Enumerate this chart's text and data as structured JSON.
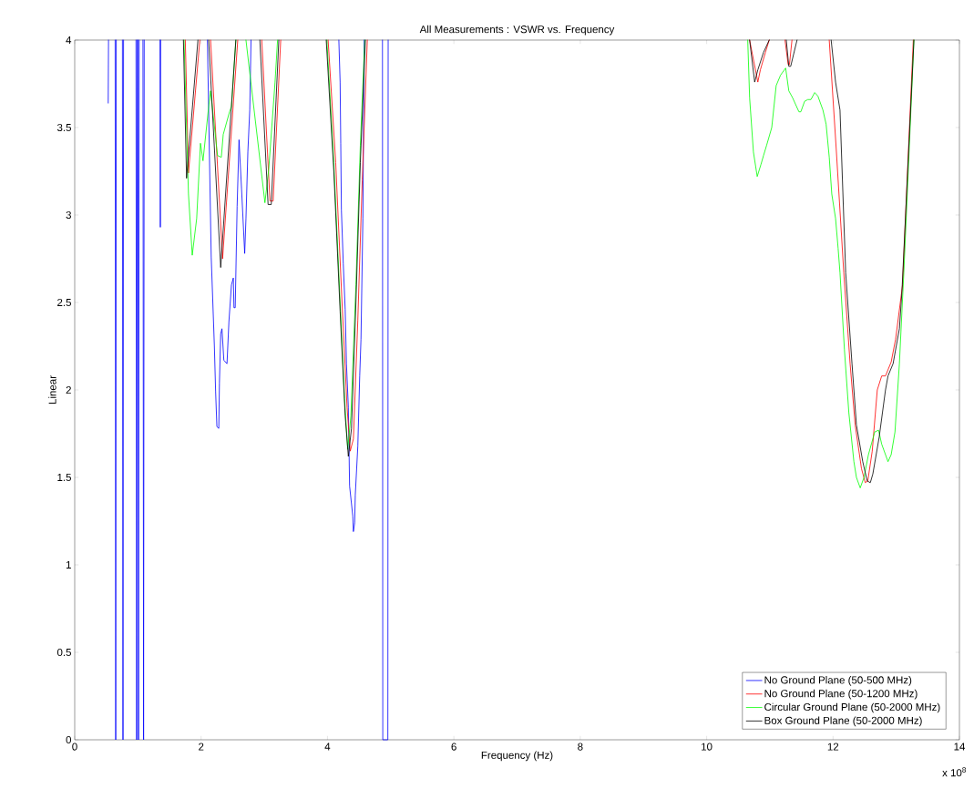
{
  "chart_data": {
    "type": "line",
    "title": "All Measurements : VSWR vs. Frequency",
    "xlabel": "Frequency (Hz)",
    "ylabel": "Linear",
    "annotations": [
      "x 10$^{8}$"
    ],
    "xlim": [
      0,
      14
    ],
    "ylim": [
      0,
      4
    ],
    "xticks": [
      0,
      2,
      4,
      6,
      8,
      10,
      12,
      14
    ],
    "yticks": [
      0,
      0.5,
      1,
      1.5,
      2,
      2.5,
      3,
      3.5,
      4
    ],
    "grid": false,
    "legend": "bottom right",
    "marker": "none",
    "series": [
      {
        "name": "No Ground Plane (50-500 MHz)",
        "color": "#0000ff",
        "x": [
          0.53,
          0.535,
          0.6,
          0.64,
          0.649,
          0.658,
          0.7,
          0.755,
          0.764,
          0.773,
          0.9,
          0.97,
          0.98,
          0.99,
          0.995,
          1.0,
          1.01,
          1.02,
          1.05,
          1.08,
          1.09,
          1.1,
          1.2,
          1.35,
          1.355,
          1.36,
          1.8,
          2.1,
          2.16,
          2.21,
          2.23,
          2.25,
          2.28,
          2.29,
          2.31,
          2.33,
          2.36,
          2.41,
          2.44,
          2.48,
          2.51,
          2.52,
          2.54,
          2.57,
          2.6,
          2.64,
          2.69,
          2.71,
          2.74,
          2.77,
          2.79,
          3.5,
          4.18,
          4.2,
          4.21,
          4.22,
          4.25,
          4.28,
          4.3,
          4.33,
          4.35,
          4.4,
          4.41,
          4.43,
          4.44,
          4.48,
          4.51,
          4.53,
          4.56,
          4.58,
          4.7,
          4.87,
          4.875,
          4.955,
          4.96
        ],
        "values": [
          3.64,
          4,
          null,
          4,
          0,
          4,
          null,
          4,
          0,
          4,
          null,
          4,
          0,
          4,
          null,
          4,
          0,
          4,
          null,
          4,
          0,
          4,
          null,
          4,
          2.93,
          4,
          null,
          4,
          2.76,
          2.25,
          1.99,
          1.79,
          1.78,
          2.04,
          2.32,
          2.35,
          2.17,
          2.15,
          2.39,
          2.6,
          2.64,
          2.47,
          2.47,
          3.05,
          3.43,
          3.15,
          2.78,
          2.98,
          3.36,
          3.6,
          4,
          null,
          4,
          3.76,
          3.41,
          3.03,
          2.72,
          2.46,
          2.15,
          1.9,
          1.45,
          1.28,
          1.19,
          1.24,
          1.4,
          1.68,
          2.08,
          2.29,
          2.98,
          4,
          null,
          4,
          0,
          0,
          4
        ]
      },
      {
        "name": "No Ground Plane (50-1200 MHz)",
        "color": "#ff0000",
        "x": [
          1.75,
          1.8,
          1.98,
          2.0,
          2.15,
          2.34,
          2.58,
          2.7,
          2.96,
          3.09,
          3.14,
          3.26,
          3.6,
          4.01,
          4.13,
          4.23,
          4.31,
          4.36,
          4.41,
          4.48,
          4.55,
          4.63,
          7.0,
          10.68,
          10.81,
          10.85,
          10.93,
          10.99,
          11.1,
          11.24,
          11.29,
          11.31,
          11.35,
          11.6,
          11.94,
          12.05,
          12.17,
          12.27,
          12.35,
          12.45,
          12.51,
          12.55,
          12.62,
          12.7,
          12.77,
          12.83,
          12.92,
          12.99,
          13.1,
          13.27
        ],
        "values": [
          4,
          3.24,
          4,
          null,
          4,
          2.75,
          4,
          null,
          4,
          3.08,
          3.08,
          4,
          null,
          4,
          3.3,
          2.5,
          1.9,
          1.65,
          1.72,
          2.4,
          3.2,
          4,
          null,
          4,
          3.76,
          3.83,
          3.93,
          4,
          null,
          4,
          3.86,
          3.86,
          4,
          null,
          4,
          3.38,
          2.67,
          2.15,
          1.8,
          1.55,
          1.47,
          1.48,
          1.65,
          2.0,
          2.08,
          2.08,
          2.16,
          2.29,
          2.6,
          4
        ]
      },
      {
        "name": "Circular Ground Plane (50-2000 MHz)",
        "color": "#00ff00",
        "x": [
          1.73,
          1.8,
          1.86,
          1.93,
          1.99,
          2.03,
          2.12,
          2.15,
          2.26,
          2.32,
          2.35,
          2.45,
          2.48,
          2.55,
          2.63,
          2.71,
          3.01,
          3.07,
          3.17,
          3.21,
          3.6,
          3.99,
          4.1,
          4.2,
          4.27,
          4.32,
          4.37,
          4.45,
          4.52,
          4.59,
          7.0,
          10.65,
          10.68,
          10.74,
          10.8,
          10.86,
          10.9,
          10.95,
          11.03,
          11.1,
          11.17,
          11.25,
          11.3,
          11.36,
          11.46,
          11.49,
          11.55,
          11.6,
          11.65,
          11.71,
          11.76,
          11.84,
          11.89,
          11.94,
          11.98,
          12.04,
          12.08,
          12.11,
          12.18,
          12.25,
          12.33,
          12.37,
          12.43,
          12.49,
          12.56,
          12.66,
          12.72,
          12.77,
          12.87,
          12.92,
          12.98,
          13.05,
          13.12,
          13.28
        ],
        "values": [
          4,
          3.12,
          2.77,
          2.98,
          3.41,
          3.31,
          3.62,
          3.71,
          3.34,
          3.33,
          3.46,
          3.59,
          3.62,
          4,
          null,
          4,
          3.07,
          3.26,
          3.76,
          4,
          null,
          4,
          3.3,
          2.5,
          1.95,
          1.66,
          1.85,
          2.6,
          3.4,
          4,
          null,
          4,
          3.67,
          3.36,
          3.22,
          3.29,
          3.34,
          3.4,
          3.5,
          3.74,
          3.8,
          3.84,
          3.71,
          3.67,
          3.59,
          3.59,
          3.65,
          3.66,
          3.66,
          3.7,
          3.68,
          3.6,
          3.52,
          3.33,
          3.12,
          2.98,
          2.81,
          2.67,
          2.23,
          1.87,
          1.59,
          1.5,
          1.44,
          1.5,
          1.63,
          1.76,
          1.77,
          1.69,
          1.59,
          1.63,
          1.76,
          2.15,
          2.67,
          4
        ]
      },
      {
        "name": "Box Ground Plane (50-2000 MHz)",
        "color": "#000000",
        "x": [
          1.72,
          1.77,
          1.95,
          2.0,
          2.12,
          2.31,
          2.55,
          2.7,
          2.93,
          3.06,
          3.11,
          3.23,
          3.6,
          3.98,
          4.1,
          4.2,
          4.28,
          4.33,
          4.38,
          4.45,
          4.52,
          4.6,
          7.0,
          10.68,
          10.76,
          10.81,
          10.9,
          10.99,
          11.1,
          11.26,
          11.3,
          11.33,
          11.43,
          11.7,
          11.97,
          12.04,
          12.11,
          12.2,
          12.3,
          12.37,
          12.47,
          12.54,
          12.59,
          12.63,
          12.73,
          12.83,
          12.87,
          12.95,
          13.05,
          13.09,
          13.28
        ],
        "values": [
          4,
          3.21,
          4,
          null,
          4,
          2.7,
          4,
          null,
          4,
          3.06,
          3.06,
          4,
          null,
          4,
          3.25,
          2.45,
          1.85,
          1.62,
          1.78,
          2.5,
          3.3,
          4,
          null,
          4,
          3.76,
          3.83,
          3.93,
          4,
          null,
          4,
          3.85,
          3.85,
          4,
          null,
          4,
          3.76,
          3.6,
          2.67,
          2.15,
          1.8,
          1.59,
          1.48,
          1.47,
          1.52,
          1.73,
          2.0,
          2.08,
          2.15,
          2.35,
          2.56,
          4
        ]
      }
    ]
  }
}
